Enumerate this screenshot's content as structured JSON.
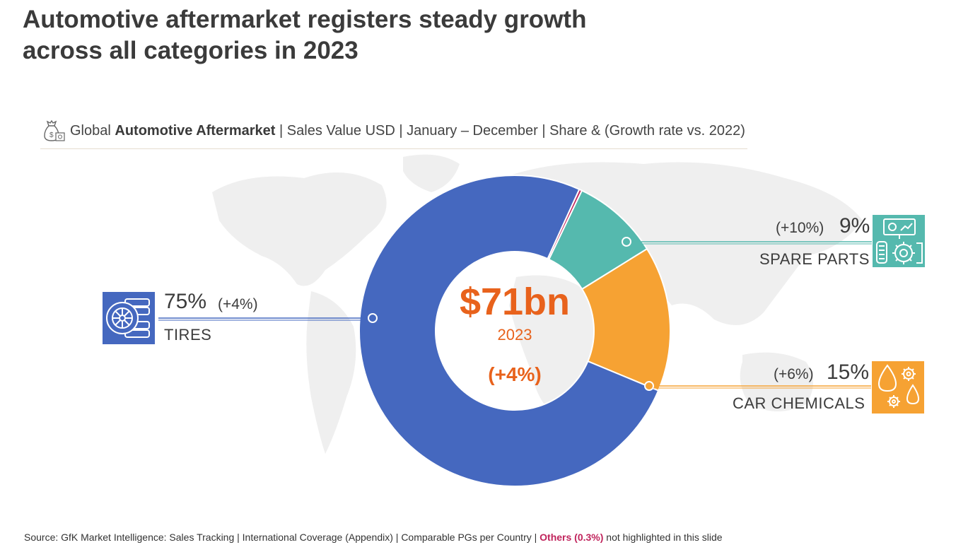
{
  "title": {
    "line1": "Automotive aftermarket registers steady growth",
    "line2": "across all categories in 2023"
  },
  "subtitle": {
    "prefix": "Global",
    "bold": "Automotive Aftermarket",
    "rest": "| Sales Value USD | January – December | Share & (Growth rate vs. 2022)",
    "icon": "money-bag-icon"
  },
  "center": {
    "value": "$71bn",
    "year": "2023",
    "growth": "(+4%)"
  },
  "labels": {
    "tires": {
      "pct": "75%",
      "growth": "(+4%)",
      "name": "TIRES",
      "icon": "tire-icon"
    },
    "spare_parts": {
      "pct": "9%",
      "growth": "(+10%)",
      "name": "SPARE PARTS",
      "icon": "spare-parts-icon"
    },
    "car_chemicals": {
      "pct": "15%",
      "growth": "(+6%)",
      "name": "CAR CHEMICALS",
      "icon": "chemicals-icon"
    }
  },
  "source": {
    "prefix": "Source: GfK Market Intelligence: Sales Tracking | International Coverage (Appendix) | Comparable PGs per Country |",
    "highlight": "Others (0.3%)",
    "suffix": "not highlighted in this slide"
  },
  "colors": {
    "tires": "#4568bf",
    "spare_parts": "#55b9ae",
    "car_chemicals": "#f6a233",
    "others": "#c0245c",
    "accent": "#e8621c"
  },
  "chart_data": {
    "type": "pie",
    "title": "$71bn",
    "categories": [
      "Tires",
      "Spare Parts",
      "Car Chemicals",
      "Others"
    ],
    "values": [
      75,
      9,
      15,
      0.3
    ],
    "growth": [
      4,
      10,
      6,
      null
    ],
    "total_growth": 4
  }
}
